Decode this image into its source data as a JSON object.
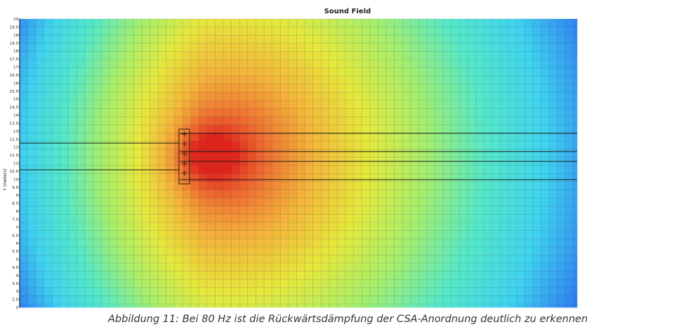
{
  "chart_data": {
    "type": "heatmap",
    "title": "Sound Field",
    "ylabel": "Y (meters)",
    "xlabel": "",
    "y_ticks": [
      "20",
      "19.5",
      "19",
      "18.5",
      "18",
      "17.5",
      "17",
      "16.5",
      "16",
      "15.5",
      "15",
      "14.5",
      "14",
      "13.5",
      "13",
      "12.5",
      "12",
      "11.5",
      "11",
      "10.5",
      "10",
      "9.5",
      "9",
      "8.5",
      "8",
      "7.5",
      "7",
      "6.5",
      "6",
      "5.5",
      "5",
      "4.5",
      "4",
      "3.5",
      "3",
      "2.5",
      "2"
    ],
    "ylim": [
      2,
      20
    ],
    "grid": true,
    "colormap": [
      "#1e2fd6",
      "#2f7bf0",
      "#3fd3f0",
      "#55e8c8",
      "#a6ee6c",
      "#e6e83c",
      "#f4b43a",
      "#ee6a30",
      "#e0241c"
    ],
    "grid_color": "#3a4a5a",
    "line_color": "#1a1a1a",
    "boundary_color": "#000000",
    "source_box_color": "#2a1a00"
  },
  "caption": "Abbildung 11: Bei 80 Hz ist die Rückwärtsdämpfung der CSA-Anordnung deutlich zu erkennen"
}
